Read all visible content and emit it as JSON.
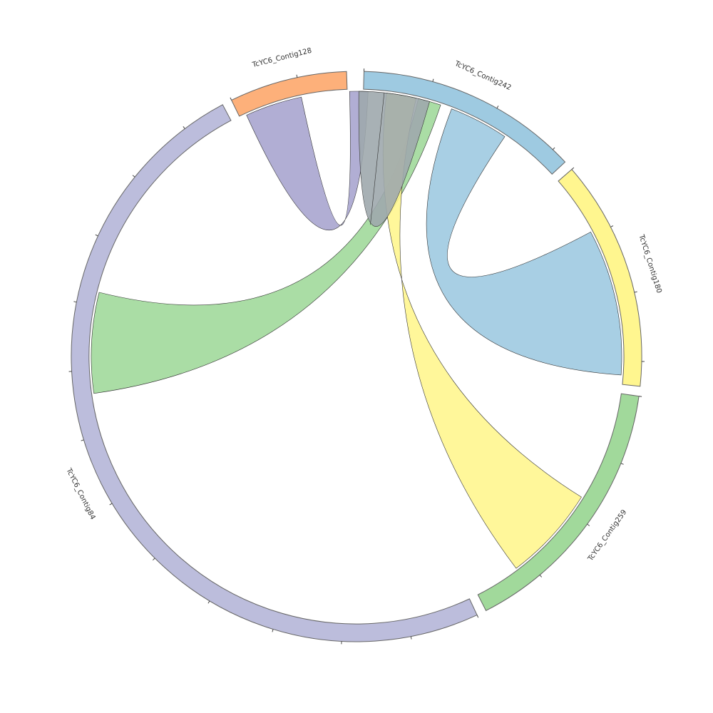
{
  "chart_data": {
    "type": "chord",
    "segments": [
      {
        "id": "c242",
        "label": "TcYC6_Contig242",
        "color": "#9ecae1",
        "start": 1.5,
        "end": 47
      },
      {
        "id": "c180",
        "label": "TcYC6_Contig180",
        "color": "#fff68f",
        "start": 49,
        "end": 96
      },
      {
        "id": "c259",
        "label": "TcYC6_Contig259",
        "color": "#a1d99b",
        "start": 98,
        "end": 153
      },
      {
        "id": "c84",
        "label": "TcYC6_Contig84",
        "color": "#bcbddc",
        "start": 155,
        "end": 332
      },
      {
        "id": "c128",
        "label": "TcYC6_Contig128",
        "color": "#fdb07a",
        "start": 334,
        "end": 358
      }
    ],
    "links": [
      {
        "color": "#a8a5cf",
        "a": [
          348,
          335.5
        ],
        "b": [
          2.5,
          358.5
        ]
      },
      {
        "color": "#a1d99b",
        "a": [
          13.5,
          18.5
        ],
        "b": [
          262,
          284
        ]
      },
      {
        "color": "#fff68f",
        "a": [
          6.5,
          13
        ],
        "b": [
          143,
          122
        ]
      },
      {
        "color": "#9ecae1",
        "a": [
          21,
          34
        ],
        "b": [
          62,
          94
        ]
      },
      {
        "color": "#9ea9ad",
        "a": [
          6,
          16
        ],
        "b": [
          0.5,
          6
        ]
      }
    ]
  }
}
